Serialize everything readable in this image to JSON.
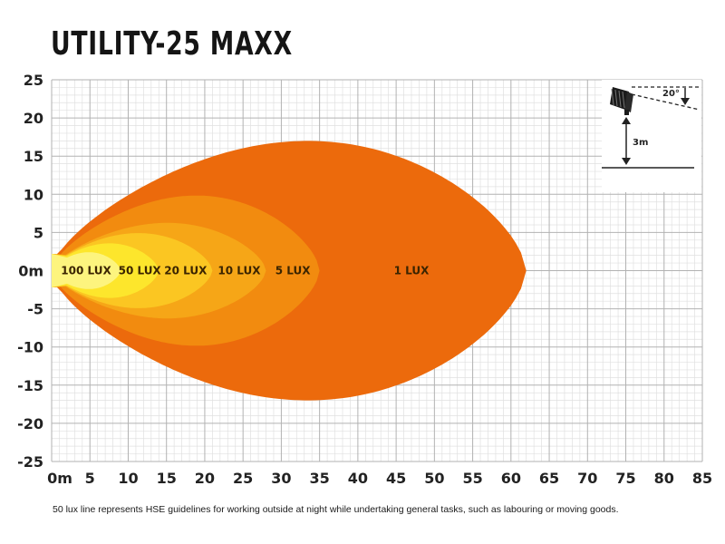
{
  "chart_data": {
    "type": "area",
    "title": "UTILITY-25 MAXX",
    "xlabel": "",
    "ylabel": "",
    "xlim": [
      0,
      85
    ],
    "ylim": [
      -25,
      25
    ],
    "x_ticks": [
      "0m",
      "5",
      "10",
      "15",
      "20",
      "25",
      "30",
      "35",
      "40",
      "45",
      "50",
      "55",
      "60",
      "65",
      "70",
      "75",
      "80",
      "85"
    ],
    "y_ticks": [
      "25",
      "20",
      "15",
      "10",
      "5",
      "0m",
      "-5",
      "-10",
      "-15",
      "-20",
      "-25"
    ],
    "grid": true,
    "series": [
      {
        "name": "1 LUX",
        "color": "#ec6a0c",
        "max_range": 62,
        "max_half_width": 19
      },
      {
        "name": "5 LUX",
        "color": "#f28b0f",
        "max_range": 35,
        "max_half_width": 11
      },
      {
        "name": "10 LUX",
        "color": "#f6a617",
        "max_range": 28,
        "max_half_width": 7
      },
      {
        "name": "20 LUX",
        "color": "#fbc622",
        "max_range": 21,
        "max_half_width": 5.5
      },
      {
        "name": "50 LUX",
        "color": "#fde62c",
        "max_range": 14,
        "max_half_width": 4
      },
      {
        "name": "100 LUX",
        "color": "#fdf47e",
        "max_range": 9,
        "max_half_width": 2.7
      }
    ]
  },
  "inset": {
    "angle_label": "20°",
    "height_label": "3m"
  },
  "footnote": "50 lux line represents HSE guidelines for working outside at night while undertaking general tasks, such as labouring or moving goods."
}
